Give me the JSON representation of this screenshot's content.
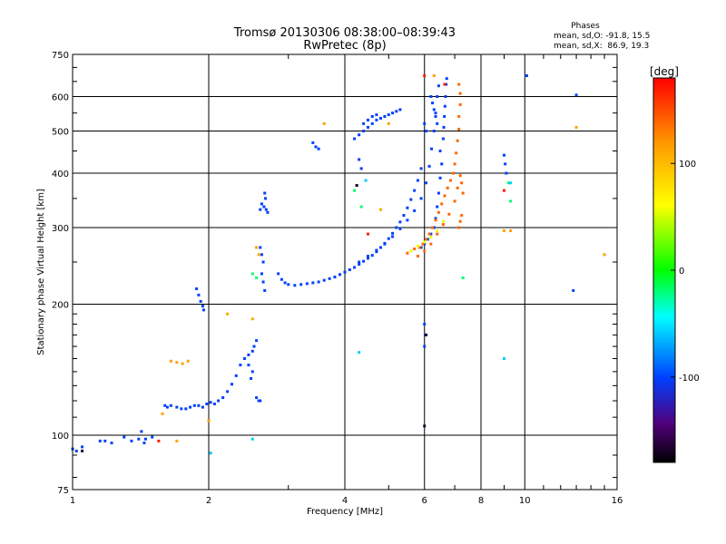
{
  "chart_data": {
    "type": "scatter",
    "title": "Tromsø 20130306 08:38:00–08:39:43",
    "subtitle": "RwPretec (8p)",
    "xlabel": "Frequency [MHz]",
    "ylabel": "Stationary phase Virtual Height [km]",
    "x_scale": "log",
    "y_scale": "log",
    "xlim": [
      1,
      16
    ],
    "ylim": [
      75,
      750
    ],
    "x_ticks": [
      1,
      2,
      4,
      6,
      8,
      10,
      16
    ],
    "y_ticks": [
      75,
      100,
      200,
      300,
      400,
      500,
      600,
      750
    ],
    "grid": true,
    "phases": {
      "title": "Phases",
      "line1": "mean, sd,O: -91.8, 15.5",
      "line2": "mean, sd,X:  86.9, 19.3"
    },
    "colorbar": {
      "label": "[deg]",
      "min": -180,
      "max": 180,
      "ticks": [
        100,
        0,
        -100
      ]
    },
    "series": [
      {
        "phase": -100,
        "points": [
          [
            1.0,
            93
          ],
          [
            1.02,
            92
          ],
          [
            1.05,
            94
          ],
          [
            1.15,
            97
          ],
          [
            1.22,
            96
          ],
          [
            1.3,
            99
          ],
          [
            1.35,
            97
          ],
          [
            1.45,
            98
          ],
          [
            1.5,
            99
          ],
          [
            1.42,
            102
          ],
          [
            1.6,
            117
          ],
          [
            1.62,
            116
          ],
          [
            1.65,
            117
          ],
          [
            1.7,
            116
          ],
          [
            1.74,
            115
          ],
          [
            1.78,
            115
          ],
          [
            1.82,
            116
          ],
          [
            1.86,
            117
          ],
          [
            1.9,
            117
          ],
          [
            1.94,
            116
          ],
          [
            1.98,
            118
          ],
          [
            2.02,
            119
          ],
          [
            2.06,
            118
          ],
          [
            2.1,
            120
          ],
          [
            2.15,
            122
          ],
          [
            2.2,
            126
          ],
          [
            2.25,
            131
          ],
          [
            2.3,
            137
          ],
          [
            2.35,
            145
          ],
          [
            2.4,
            150
          ],
          [
            2.45,
            153
          ],
          [
            2.5,
            156
          ],
          [
            2.52,
            160
          ],
          [
            2.55,
            165
          ],
          [
            2.48,
            135
          ],
          [
            2.45,
            145
          ],
          [
            2.5,
            140
          ],
          [
            2.55,
            122
          ],
          [
            2.58,
            120
          ],
          [
            2.6,
            120
          ],
          [
            1.88,
            217
          ],
          [
            1.9,
            210
          ],
          [
            1.92,
            203
          ],
          [
            1.94,
            198
          ],
          [
            1.95,
            194
          ],
          [
            2.6,
            270
          ],
          [
            2.62,
            260
          ],
          [
            2.64,
            250
          ],
          [
            2.62,
            235
          ],
          [
            2.64,
            225
          ],
          [
            2.66,
            215
          ],
          [
            2.6,
            330
          ],
          [
            2.62,
            340
          ],
          [
            2.65,
            335
          ],
          [
            2.68,
            330
          ],
          [
            2.7,
            325
          ],
          [
            2.66,
            360
          ],
          [
            2.67,
            350
          ],
          [
            2.85,
            235
          ],
          [
            2.9,
            228
          ],
          [
            2.95,
            224
          ],
          [
            3.0,
            222
          ],
          [
            3.1,
            221
          ],
          [
            3.2,
            222
          ],
          [
            3.3,
            223
          ],
          [
            3.4,
            224
          ],
          [
            3.5,
            225
          ],
          [
            3.6,
            227
          ],
          [
            3.7,
            229
          ],
          [
            3.8,
            231
          ],
          [
            3.9,
            234
          ],
          [
            4.0,
            237
          ],
          [
            4.1,
            240
          ],
          [
            4.2,
            243
          ],
          [
            4.3,
            247
          ],
          [
            4.4,
            251
          ],
          [
            4.5,
            255
          ],
          [
            4.6,
            259
          ],
          [
            4.7,
            264
          ],
          [
            4.8,
            270
          ],
          [
            4.9,
            276
          ],
          [
            5.0,
            283
          ],
          [
            5.1,
            291
          ],
          [
            5.2,
            300
          ],
          [
            5.3,
            309
          ],
          [
            5.4,
            320
          ],
          [
            5.5,
            333
          ],
          [
            5.6,
            348
          ],
          [
            5.7,
            365
          ],
          [
            5.8,
            385
          ],
          [
            5.9,
            410
          ],
          [
            4.3,
            250
          ],
          [
            4.5,
            258
          ],
          [
            4.7,
            266
          ],
          [
            4.9,
            275
          ],
          [
            5.1,
            286
          ],
          [
            5.3,
            298
          ],
          [
            5.5,
            312
          ],
          [
            5.7,
            328
          ],
          [
            5.9,
            350
          ],
          [
            6.05,
            380
          ],
          [
            6.15,
            415
          ],
          [
            6.22,
            455
          ],
          [
            6.3,
            500
          ],
          [
            6.35,
            550
          ],
          [
            6.4,
            600
          ],
          [
            6.45,
            635
          ],
          [
            6.2,
            600
          ],
          [
            6.25,
            580
          ],
          [
            6.3,
            560
          ],
          [
            6.35,
            540
          ],
          [
            6.4,
            520
          ],
          [
            6.5,
            450
          ],
          [
            6.55,
            420
          ],
          [
            6.5,
            390
          ],
          [
            6.45,
            360
          ],
          [
            6.4,
            335
          ],
          [
            6.35,
            315
          ],
          [
            6.3,
            300
          ],
          [
            6.2,
            290
          ],
          [
            6.1,
            282
          ],
          [
            6.0,
            275
          ],
          [
            5.9,
            270
          ],
          [
            6.6,
            480
          ],
          [
            6.62,
            510
          ],
          [
            6.64,
            540
          ],
          [
            6.66,
            570
          ],
          [
            6.68,
            600
          ],
          [
            6.7,
            640
          ],
          [
            6.72,
            660
          ],
          [
            4.3,
            490
          ],
          [
            4.4,
            500
          ],
          [
            4.5,
            510
          ],
          [
            4.6,
            520
          ],
          [
            4.7,
            530
          ],
          [
            4.8,
            535
          ],
          [
            4.9,
            540
          ],
          [
            5.0,
            545
          ],
          [
            5.1,
            550
          ],
          [
            5.2,
            555
          ],
          [
            5.3,
            560
          ],
          [
            4.4,
            520
          ],
          [
            4.5,
            530
          ],
          [
            4.6,
            540
          ],
          [
            4.7,
            545
          ],
          [
            3.4,
            470
          ],
          [
            3.45,
            460
          ],
          [
            3.5,
            455
          ],
          [
            4.2,
            480
          ],
          [
            4.3,
            430
          ],
          [
            4.35,
            410
          ],
          [
            6.0,
            520
          ],
          [
            6.05,
            500
          ],
          [
            6.0,
            180
          ],
          [
            6.02,
            170
          ],
          [
            6.0,
            160
          ],
          [
            9.0,
            440
          ],
          [
            9.05,
            420
          ],
          [
            9.1,
            400
          ],
          [
            10.1,
            670
          ],
          [
            12.8,
            215
          ],
          [
            13.0,
            605
          ],
          [
            1.18,
            97
          ],
          [
            1.4,
            98
          ],
          [
            1.44,
            96
          ]
        ]
      },
      {
        "phase": 140,
        "points": [
          [
            5.85,
            270
          ],
          [
            5.95,
            275
          ],
          [
            6.05,
            282
          ],
          [
            6.15,
            290
          ],
          [
            6.25,
            300
          ],
          [
            6.35,
            312
          ],
          [
            6.45,
            325
          ],
          [
            6.55,
            340
          ],
          [
            6.65,
            355
          ],
          [
            6.75,
            370
          ],
          [
            6.85,
            385
          ],
          [
            6.95,
            400
          ],
          [
            7.0,
            420
          ],
          [
            7.05,
            445
          ],
          [
            7.1,
            475
          ],
          [
            7.15,
            505
          ],
          [
            7.15,
            540
          ],
          [
            7.2,
            575
          ],
          [
            7.2,
            610
          ],
          [
            7.15,
            640
          ],
          [
            6.0,
            265
          ],
          [
            6.2,
            275
          ],
          [
            6.4,
            290
          ],
          [
            6.6,
            305
          ],
          [
            6.8,
            322
          ],
          [
            7.0,
            345
          ],
          [
            7.1,
            370
          ],
          [
            7.2,
            395
          ],
          [
            7.25,
            380
          ],
          [
            7.3,
            360
          ],
          [
            5.7,
            268
          ],
          [
            5.5,
            262
          ],
          [
            5.8,
            258
          ],
          [
            7.15,
            300
          ],
          [
            7.2,
            310
          ],
          [
            7.25,
            320
          ]
        ]
      },
      {
        "phase": 55,
        "points": [
          [
            5.6,
            265
          ],
          [
            5.8,
            272
          ],
          [
            6.0,
            278
          ],
          [
            6.2,
            285
          ],
          [
            6.4,
            295
          ],
          [
            6.6,
            310
          ]
        ]
      },
      {
        "phase": 170,
        "points": [
          [
            6.0,
            670
          ],
          [
            6.65,
            640
          ],
          [
            4.5,
            290
          ],
          [
            9.0,
            365
          ],
          [
            1.55,
            97
          ]
        ]
      },
      {
        "phase": 115,
        "points": [
          [
            1.65,
            148
          ],
          [
            1.7,
            147
          ],
          [
            1.75,
            146
          ],
          [
            1.8,
            148
          ],
          [
            1.58,
            112
          ],
          [
            2.55,
            270
          ],
          [
            2.58,
            260
          ],
          [
            2.2,
            190
          ],
          [
            2.5,
            185
          ],
          [
            3.6,
            520
          ],
          [
            5.0,
            520
          ],
          [
            9.0,
            295
          ],
          [
            9.3,
            295
          ],
          [
            13.0,
            510
          ],
          [
            15.0,
            260
          ],
          [
            6.3,
            670
          ],
          [
            2.0,
            108
          ],
          [
            1.7,
            97
          ],
          [
            4.8,
            330
          ]
        ]
      },
      {
        "phase": -20,
        "points": [
          [
            2.5,
            235
          ],
          [
            2.55,
            230
          ],
          [
            4.35,
            335
          ],
          [
            4.2,
            365
          ],
          [
            7.3,
            230
          ],
          [
            9.2,
            380
          ],
          [
            9.3,
            345
          ]
        ]
      },
      {
        "phase": -60,
        "points": [
          [
            4.3,
            155
          ],
          [
            9.0,
            150
          ],
          [
            9.3,
            380
          ],
          [
            4.45,
            385
          ],
          [
            2.5,
            98
          ],
          [
            2.02,
            91
          ]
        ]
      },
      {
        "phase": -170,
        "points": [
          [
            6.0,
            105
          ],
          [
            6.05,
            170
          ],
          [
            1.05,
            92
          ],
          [
            4.25,
            375
          ]
        ]
      }
    ]
  }
}
